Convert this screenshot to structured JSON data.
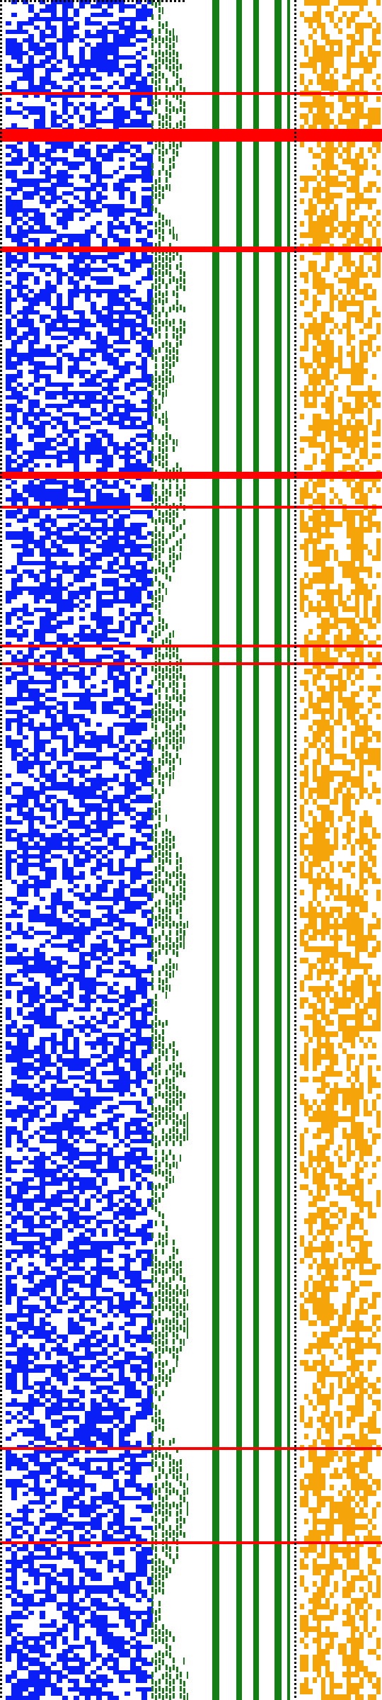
{
  "image": {
    "description": "",
    "palette": {
      "background": "#ffffff",
      "left_noise": "#0a1ff5",
      "staircase": "#1f7a1f",
      "vertical_bars": "#138013",
      "right_noise": "#f5a50a",
      "highlight_bands": "#ff0000",
      "dotted_separators": "#000000"
    },
    "regions": [
      {
        "name": "blue-noise-field",
        "color": "#0a1ff5",
        "density": 0.55
      },
      {
        "name": "green-staircase",
        "color": "#1f7a1f"
      },
      {
        "name": "green-vertical-bars",
        "color": "#138013",
        "count": 5
      },
      {
        "name": "orange-noise-field",
        "color": "#f5a50a",
        "density": 0.5
      },
      {
        "name": "red-highlight-bands",
        "color": "#ff0000",
        "count": 10
      }
    ]
  }
}
